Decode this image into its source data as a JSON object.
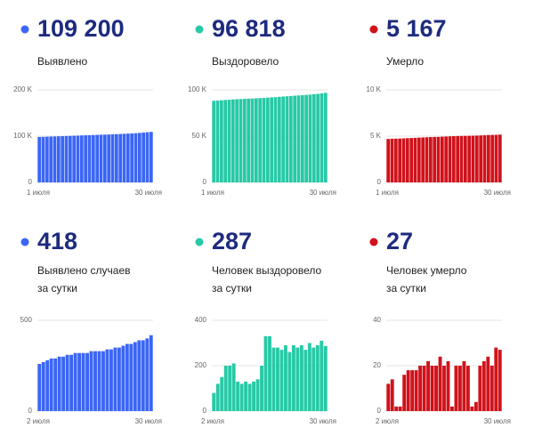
{
  "chart_data": [
    {
      "type": "bar",
      "headline": "109 200",
      "label": [
        "Выявлено"
      ],
      "color": "#3b66f5",
      "categories": [
        "1 июля",
        null,
        null,
        null,
        null,
        null,
        null,
        null,
        null,
        null,
        null,
        null,
        null,
        null,
        null,
        null,
        null,
        null,
        null,
        null,
        null,
        null,
        null,
        null,
        null,
        null,
        null,
        null,
        null,
        "30 июля"
      ],
      "values": [
        98200,
        98500,
        98800,
        99100,
        99400,
        99700,
        100000,
        100300,
        100600,
        100900,
        101200,
        101500,
        101800,
        102100,
        102400,
        102700,
        103000,
        103300,
        103600,
        103900,
        104300,
        104700,
        105100,
        105500,
        105900,
        106400,
        107000,
        107800,
        108500,
        109200
      ],
      "ylim": [
        0,
        200000
      ],
      "yticks": [
        0,
        {
          "value": 100000,
          "label": "100 K"
        },
        {
          "value": 200000,
          "label": "200 K"
        }
      ]
    },
    {
      "type": "bar",
      "headline": "96 818",
      "label": [
        "Выздоровело"
      ],
      "color": "#27c9a6",
      "categories": [
        "1 июля",
        null,
        null,
        null,
        null,
        null,
        null,
        null,
        null,
        null,
        null,
        null,
        null,
        null,
        null,
        null,
        null,
        null,
        null,
        null,
        null,
        null,
        null,
        null,
        null,
        null,
        null,
        null,
        null,
        "30 июля"
      ],
      "values": [
        88200,
        88500,
        88800,
        89100,
        89400,
        89700,
        89900,
        90100,
        90300,
        90500,
        90700,
        90900,
        91100,
        91300,
        91600,
        91900,
        92200,
        92500,
        92800,
        93100,
        93400,
        93700,
        94000,
        94300,
        94600,
        94900,
        95300,
        95700,
        96200,
        96818
      ],
      "ylim": [
        0,
        100000
      ],
      "yticks": [
        0,
        {
          "value": 50000,
          "label": "50 K"
        },
        {
          "value": 100000,
          "label": "100 K"
        }
      ]
    },
    {
      "type": "bar",
      "headline": "5 167",
      "label": [
        "Умерло"
      ],
      "color": "#d0121b",
      "categories": [
        "1 июля",
        null,
        null,
        null,
        null,
        null,
        null,
        null,
        null,
        null,
        null,
        null,
        null,
        null,
        null,
        null,
        null,
        null,
        null,
        null,
        null,
        null,
        null,
        null,
        null,
        null,
        null,
        null,
        null,
        "30 июля"
      ],
      "values": [
        4700,
        4720,
        4730,
        4740,
        4760,
        4780,
        4800,
        4820,
        4840,
        4860,
        4880,
        4900,
        4910,
        4920,
        4940,
        4960,
        4980,
        5000,
        5010,
        5020,
        5030,
        5040,
        5050,
        5060,
        5080,
        5100,
        5120,
        5130,
        5140,
        5167
      ],
      "ylim": [
        0,
        10000
      ],
      "yticks": [
        0,
        {
          "value": 5000,
          "label": "5 K"
        },
        {
          "value": 10000,
          "label": "10 K"
        }
      ]
    },
    {
      "type": "bar",
      "headline": "418",
      "label": [
        "Выявлено случаев",
        "за сутки"
      ],
      "color": "#3b66f5",
      "categories": [
        "2 июля",
        null,
        null,
        null,
        null,
        null,
        null,
        null,
        null,
        null,
        null,
        null,
        null,
        null,
        null,
        null,
        null,
        null,
        null,
        null,
        null,
        null,
        null,
        null,
        null,
        null,
        null,
        null,
        "30 июля"
      ],
      "values": [
        260,
        270,
        280,
        290,
        290,
        300,
        300,
        310,
        310,
        320,
        320,
        320,
        320,
        330,
        330,
        330,
        330,
        340,
        340,
        350,
        350,
        360,
        370,
        370,
        380,
        390,
        390,
        400,
        418
      ],
      "ylim": [
        0,
        500
      ],
      "yticks": [
        0,
        500
      ]
    },
    {
      "type": "bar",
      "headline": "287",
      "label": [
        "Человек выздоровело",
        "за сутки"
      ],
      "color": "#27c9a6",
      "categories": [
        "2 июля",
        null,
        null,
        null,
        null,
        null,
        null,
        null,
        null,
        null,
        null,
        null,
        null,
        null,
        null,
        null,
        null,
        null,
        null,
        null,
        null,
        null,
        null,
        null,
        null,
        null,
        null,
        null,
        "30 июля"
      ],
      "values": [
        80,
        120,
        150,
        200,
        200,
        210,
        130,
        120,
        130,
        120,
        130,
        140,
        200,
        330,
        330,
        280,
        280,
        270,
        290,
        260,
        290,
        280,
        290,
        270,
        300,
        280,
        290,
        310,
        287
      ],
      "ylim": [
        0,
        400
      ],
      "yticks": [
        0,
        200,
        400
      ]
    },
    {
      "type": "bar",
      "headline": "27",
      "label": [
        "Человек умерло",
        "за сутки"
      ],
      "color": "#d0121b",
      "categories": [
        "2 июля",
        null,
        null,
        null,
        null,
        null,
        null,
        null,
        null,
        null,
        null,
        null,
        null,
        null,
        null,
        null,
        null,
        null,
        null,
        null,
        null,
        null,
        null,
        null,
        null,
        null,
        null,
        null,
        "30 июля"
      ],
      "values": [
        12,
        14,
        2,
        2,
        16,
        18,
        18,
        18,
        20,
        20,
        22,
        20,
        20,
        24,
        20,
        22,
        2,
        20,
        20,
        22,
        20,
        2,
        4,
        20,
        22,
        24,
        20,
        28,
        27
      ],
      "ylim": [
        0,
        40
      ],
      "yticks": [
        0,
        20,
        40
      ]
    }
  ]
}
